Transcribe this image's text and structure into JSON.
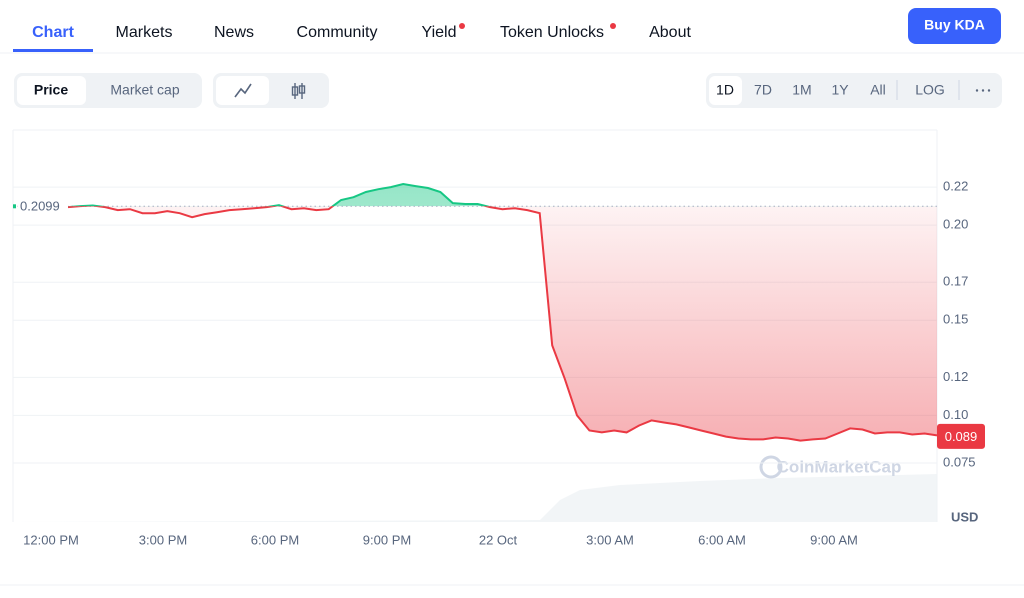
{
  "nav": {
    "tabs": [
      "Chart",
      "Markets",
      "News",
      "Community",
      "Yield",
      "Token Unlocks",
      "About"
    ],
    "active": 0,
    "button": "Buy KDA"
  },
  "toolbar": {
    "metrics": [
      "Price",
      "Market cap"
    ],
    "ranges": [
      "1D",
      "7D",
      "1M",
      "1Y",
      "All",
      "LOG"
    ]
  },
  "chart_data": {
    "type": "line",
    "values": [
      0.2095,
      0.21,
      0.2103,
      0.2095,
      0.2079,
      0.2084,
      0.2063,
      0.2063,
      0.2074,
      0.2063,
      0.2042,
      0.2058,
      0.2068,
      0.2079,
      0.2084,
      0.2089,
      0.2095,
      0.2105,
      0.2084,
      0.2089,
      0.2079,
      0.2084,
      0.2132,
      0.2147,
      0.2174,
      0.2189,
      0.22,
      0.2216,
      0.2205,
      0.2195,
      0.2174,
      0.2116,
      0.2111,
      0.2111,
      0.2095,
      0.2084,
      0.2089,
      0.2079,
      0.2063,
      0.1368,
      0.1195,
      0.1,
      0.0921,
      0.0911,
      0.0921,
      0.0911,
      0.0947,
      0.0974,
      0.0963,
      0.0953,
      0.0937,
      0.0921,
      0.0905,
      0.0889,
      0.0879,
      0.0874,
      0.0874,
      0.0884,
      0.0879,
      0.0868,
      0.0874,
      0.0879,
      0.0905,
      0.0932,
      0.0926,
      0.0905,
      0.0911,
      0.0911,
      0.09,
      0.0905,
      0.0895
    ],
    "x_labels": [
      "12:00 PM",
      "3:00 PM",
      "6:00 PM",
      "9:00 PM",
      "22 Oct",
      "3:00 AM",
      "6:00 AM",
      "9:00 AM"
    ],
    "ylim": [
      0.044,
      0.25
    ],
    "yticks": [
      0.22,
      {
        "value": 0.2,
        "label": "0.20"
      },
      0.17,
      0.15,
      0.12,
      {
        "value": 0.1,
        "label": "0.10"
      },
      0.075
    ],
    "reference": 0.2099,
    "last_price": 0.089,
    "up_color": "#16c784",
    "down_color": "#ea3943",
    "unit": "USD",
    "watermark": "CoinMarketCap",
    "grid": true
  }
}
